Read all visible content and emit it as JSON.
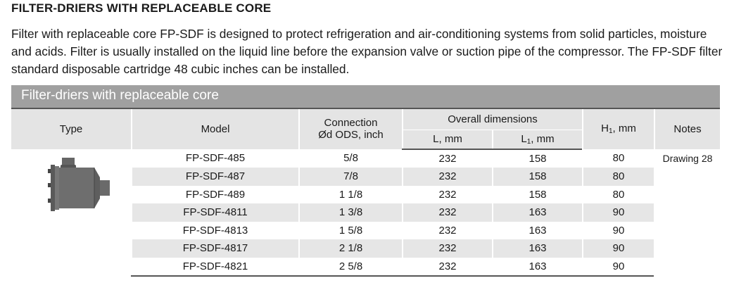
{
  "heading": "FILTER-DRIERS WITH REPLACEABLE CORE",
  "paragraph": "Filter with replaceable core FP-SDF is designed to protect refrigeration and air-conditioning systems from solid particles, moisture and acids. Filter is usually installed on the liquid line before the expansion valve or suction pipe of the compressor. The FP-SDF filter standard disposable cartridge 48 cubic inches can be installed.",
  "table": {
    "title": "Filter-driers with replaceable core",
    "headers": {
      "type": "Type",
      "model": "Model",
      "connection": "Connection",
      "connection2": "Ød  ODS, inch",
      "overall": "Overall dimensions",
      "l": "L, mm",
      "l1": "L",
      "l1_sub": "1",
      "l1_unit": ", mm",
      "h1": "H",
      "h1_sub": "1",
      "h1_unit": ", mm",
      "notes": "Notes"
    },
    "notes": "Drawing 28",
    "rows": [
      {
        "model": "FP-SDF-485",
        "conn": "5/8",
        "l": "232",
        "l1": "158",
        "h1": "80"
      },
      {
        "model": "FP-SDF-487",
        "conn": "7/8",
        "l": "232",
        "l1": "158",
        "h1": "80"
      },
      {
        "model": "FP-SDF-489",
        "conn": "1 1/8",
        "l": "232",
        "l1": "158",
        "h1": "80"
      },
      {
        "model": "FP-SDF-4811",
        "conn": "1 3/8",
        "l": "232",
        "l1": "163",
        "h1": "90"
      },
      {
        "model": "FP-SDF-4813",
        "conn": "1 5/8",
        "l": "232",
        "l1": "163",
        "h1": "90"
      },
      {
        "model": "FP-SDF-4817",
        "conn": "2 1/8",
        "l": "232",
        "l1": "163",
        "h1": "90"
      },
      {
        "model": "FP-SDF-4821",
        "conn": "2 5/8",
        "l": "232",
        "l1": "163",
        "h1": "90"
      }
    ]
  }
}
